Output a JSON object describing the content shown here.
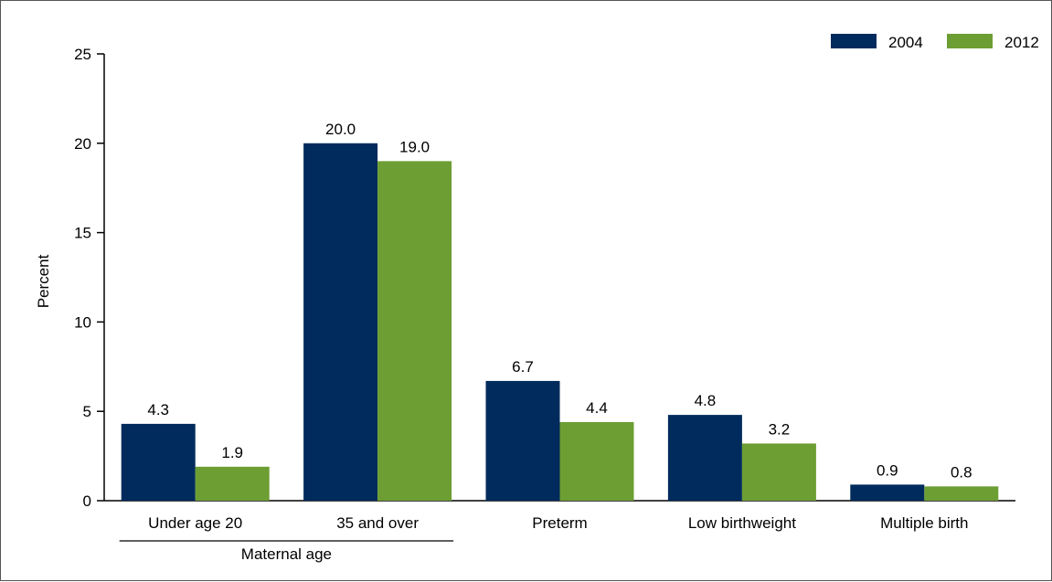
{
  "chart_data": {
    "type": "bar",
    "title": "",
    "ylabel": "Percent",
    "ylim": [
      0,
      25
    ],
    "yticks": [
      0,
      5,
      10,
      15,
      20,
      25
    ],
    "grid": false,
    "legend_position": "top-right",
    "categories": [
      "Under age 20",
      "35 and over",
      "Preterm",
      "Low birthweight",
      "Multiple birth"
    ],
    "category_groups": [
      {
        "label": "Maternal age",
        "categories": [
          "Under age 20",
          "35 and over"
        ]
      }
    ],
    "series": [
      {
        "name": "2004",
        "color": "#002B5C",
        "values": [
          4.3,
          20.0,
          6.7,
          4.8,
          0.9
        ],
        "labels": [
          "4.3",
          "20.0",
          "6.7",
          "4.8",
          "0.9"
        ]
      },
      {
        "name": "2012",
        "color": "#6D9E33",
        "values": [
          1.9,
          19.0,
          4.4,
          3.2,
          0.8
        ],
        "labels": [
          "1.9",
          "19.0",
          "4.4",
          "3.2",
          "0.8"
        ]
      }
    ]
  }
}
